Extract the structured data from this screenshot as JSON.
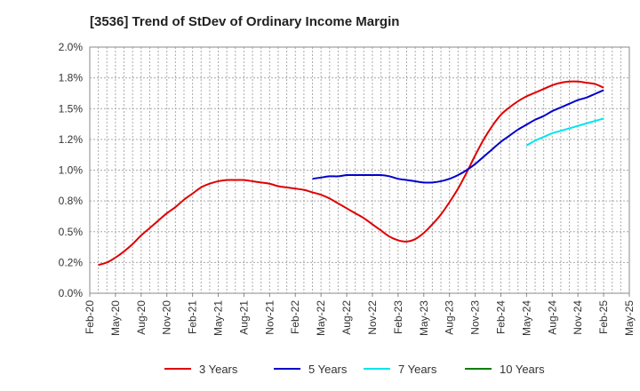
{
  "chart_data": {
    "type": "line",
    "title": "[3536]  Trend of StDev of Ordinary Income Margin",
    "xlabel": "",
    "ylabel": "",
    "x_tick_labels": [
      "Feb-20",
      "May-20",
      "Aug-20",
      "Nov-20",
      "Feb-21",
      "May-21",
      "Aug-21",
      "Nov-21",
      "Feb-22",
      "May-22",
      "Aug-22",
      "Nov-22",
      "Feb-23",
      "May-23",
      "Aug-23",
      "Nov-23",
      "Feb-24",
      "May-24",
      "Aug-24",
      "Nov-24",
      "Feb-25",
      "May-25"
    ],
    "y_tick_labels": [
      "0.0%",
      "0.2%",
      "0.5%",
      "0.8%",
      "1.0%",
      "1.2%",
      "1.5%",
      "1.8%",
      "2.0%"
    ],
    "ylim": [
      0,
      2.0
    ],
    "grid": true,
    "legend_position": "bottom",
    "series": [
      {
        "name": "3 Years",
        "color": "#e00000",
        "points": [
          [
            "Mar-20",
            0.23
          ],
          [
            "Apr-20",
            0.25
          ],
          [
            "May-20",
            0.29
          ],
          [
            "Jun-20",
            0.34
          ],
          [
            "Jul-20",
            0.4
          ],
          [
            "Aug-20",
            0.47
          ],
          [
            "Sep-20",
            0.53
          ],
          [
            "Oct-20",
            0.59
          ],
          [
            "Nov-20",
            0.65
          ],
          [
            "Dec-20",
            0.7
          ],
          [
            "Jan-21",
            0.76
          ],
          [
            "Feb-21",
            0.81
          ],
          [
            "Mar-21",
            0.86
          ],
          [
            "Apr-21",
            0.89
          ],
          [
            "May-21",
            0.91
          ],
          [
            "Jun-21",
            0.92
          ],
          [
            "Jul-21",
            0.92
          ],
          [
            "Aug-21",
            0.92
          ],
          [
            "Sep-21",
            0.91
          ],
          [
            "Oct-21",
            0.9
          ],
          [
            "Nov-21",
            0.89
          ],
          [
            "Dec-21",
            0.87
          ],
          [
            "Jan-22",
            0.86
          ],
          [
            "Feb-22",
            0.85
          ],
          [
            "Mar-22",
            0.84
          ],
          [
            "Apr-22",
            0.82
          ],
          [
            "May-22",
            0.8
          ],
          [
            "Jun-22",
            0.77
          ],
          [
            "Jul-22",
            0.73
          ],
          [
            "Aug-22",
            0.69
          ],
          [
            "Sep-22",
            0.65
          ],
          [
            "Oct-22",
            0.61
          ],
          [
            "Nov-22",
            0.56
          ],
          [
            "Dec-22",
            0.51
          ],
          [
            "Jan-23",
            0.46
          ],
          [
            "Feb-23",
            0.43
          ],
          [
            "Mar-23",
            0.42
          ],
          [
            "Apr-23",
            0.44
          ],
          [
            "May-23",
            0.49
          ],
          [
            "Jun-23",
            0.56
          ],
          [
            "Jul-23",
            0.64
          ],
          [
            "Aug-23",
            0.74
          ],
          [
            "Sep-23",
            0.85
          ],
          [
            "Oct-23",
            0.98
          ],
          [
            "Nov-23",
            1.12
          ],
          [
            "Dec-23",
            1.25
          ],
          [
            "Jan-24",
            1.36
          ],
          [
            "Feb-24",
            1.45
          ],
          [
            "Mar-24",
            1.51
          ],
          [
            "Apr-24",
            1.56
          ],
          [
            "May-24",
            1.6
          ],
          [
            "Jun-24",
            1.63
          ],
          [
            "Jul-24",
            1.66
          ],
          [
            "Aug-24",
            1.69
          ],
          [
            "Sep-24",
            1.71
          ],
          [
            "Oct-24",
            1.72
          ],
          [
            "Nov-24",
            1.72
          ],
          [
            "Dec-24",
            1.71
          ],
          [
            "Jan-25",
            1.7
          ],
          [
            "Feb-25",
            1.67
          ]
        ]
      },
      {
        "name": "5 Years",
        "color": "#0000cc",
        "points": [
          [
            "Apr-22",
            0.93
          ],
          [
            "May-22",
            0.94
          ],
          [
            "Jun-22",
            0.95
          ],
          [
            "Jul-22",
            0.95
          ],
          [
            "Aug-22",
            0.96
          ],
          [
            "Sep-22",
            0.96
          ],
          [
            "Oct-22",
            0.96
          ],
          [
            "Nov-22",
            0.96
          ],
          [
            "Dec-22",
            0.96
          ],
          [
            "Jan-23",
            0.95
          ],
          [
            "Feb-23",
            0.93
          ],
          [
            "Mar-23",
            0.92
          ],
          [
            "Apr-23",
            0.91
          ],
          [
            "May-23",
            0.9
          ],
          [
            "Jun-23",
            0.9
          ],
          [
            "Jul-23",
            0.91
          ],
          [
            "Aug-23",
            0.93
          ],
          [
            "Sep-23",
            0.96
          ],
          [
            "Oct-23",
            1.0
          ],
          [
            "Nov-23",
            1.05
          ],
          [
            "Dec-23",
            1.11
          ],
          [
            "Jan-24",
            1.17
          ],
          [
            "Feb-24",
            1.23
          ],
          [
            "Mar-24",
            1.28
          ],
          [
            "Apr-24",
            1.33
          ],
          [
            "May-24",
            1.37
          ],
          [
            "Jun-24",
            1.41
          ],
          [
            "Jul-24",
            1.44
          ],
          [
            "Aug-24",
            1.48
          ],
          [
            "Sep-24",
            1.51
          ],
          [
            "Oct-24",
            1.54
          ],
          [
            "Nov-24",
            1.57
          ],
          [
            "Dec-24",
            1.59
          ],
          [
            "Jan-25",
            1.62
          ],
          [
            "Feb-25",
            1.65
          ]
        ]
      },
      {
        "name": "7 Years",
        "color": "#00e5ee",
        "points": [
          [
            "May-24",
            1.2
          ],
          [
            "Jun-24",
            1.24
          ],
          [
            "Jul-24",
            1.27
          ],
          [
            "Aug-24",
            1.3
          ],
          [
            "Sep-24",
            1.32
          ],
          [
            "Oct-24",
            1.34
          ],
          [
            "Nov-24",
            1.36
          ],
          [
            "Dec-24",
            1.38
          ],
          [
            "Jan-25",
            1.4
          ],
          [
            "Feb-25",
            1.42
          ]
        ]
      },
      {
        "name": "10 Years",
        "color": "#008000",
        "points": []
      }
    ]
  }
}
